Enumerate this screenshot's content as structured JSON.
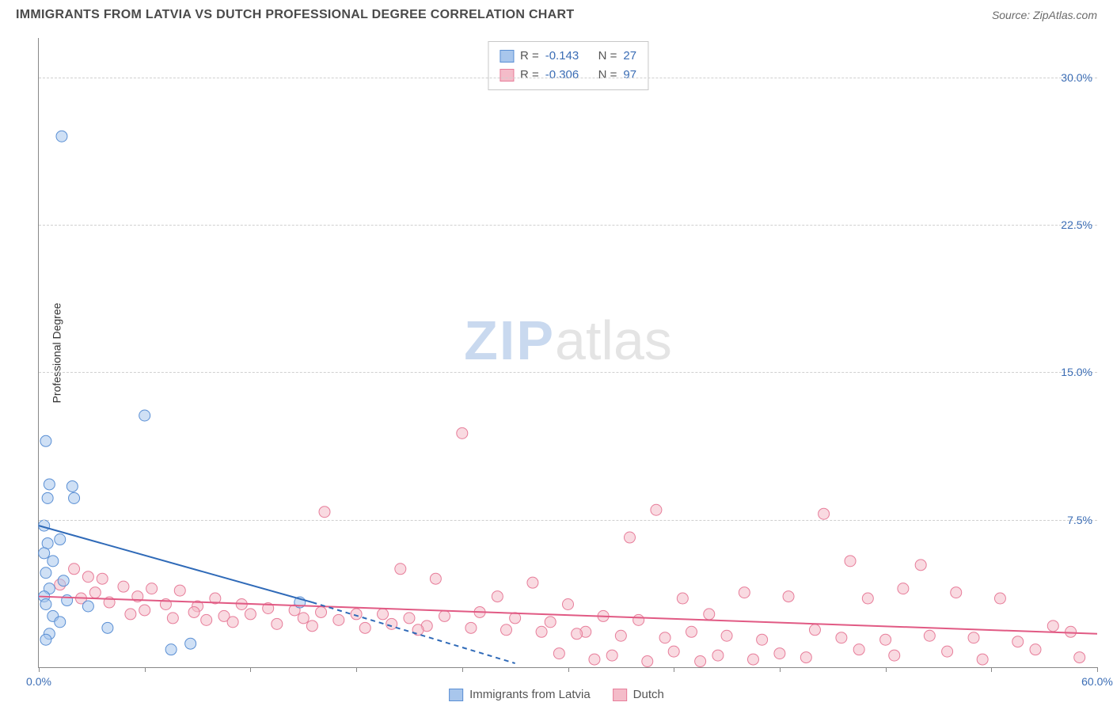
{
  "header": {
    "title": "IMMIGRANTS FROM LATVIA VS DUTCH PROFESSIONAL DEGREE CORRELATION CHART",
    "source": "Source: ZipAtlas.com"
  },
  "watermark": {
    "zip": "ZIP",
    "atlas": "atlas"
  },
  "chart": {
    "type": "scatter",
    "ylabel": "Professional Degree",
    "xlim": [
      0,
      60
    ],
    "ylim": [
      0,
      32
    ],
    "ytick_values": [
      7.5,
      15.0,
      22.5,
      30.0
    ],
    "ytick_labels": [
      "7.5%",
      "15.0%",
      "22.5%",
      "30.0%"
    ],
    "xtick_values": [
      0,
      6,
      12,
      18,
      24,
      30,
      36,
      42,
      48,
      54,
      60
    ],
    "x_axis_labels": {
      "left": "0.0%",
      "right": "60.0%"
    },
    "background_color": "#ffffff",
    "grid_color": "#d0d0d0",
    "marker_radius": 7,
    "marker_opacity": 0.55,
    "series": {
      "latvia": {
        "label": "Immigrants from Latvia",
        "fill": "#a8c6ec",
        "stroke": "#5a8fd4",
        "line_color": "#2f6ab8",
        "R_label": "R = ",
        "R": "-0.143",
        "N_label": "N = ",
        "N": "27",
        "trend": {
          "x1": 0,
          "y1": 7.2,
          "x2": 15.5,
          "y2": 3.3,
          "x2_dash": 27,
          "y2_dash": 0.2
        },
        "points": [
          [
            1.3,
            27.0
          ],
          [
            6.0,
            12.8
          ],
          [
            0.4,
            11.5
          ],
          [
            0.6,
            9.3
          ],
          [
            1.9,
            9.2
          ],
          [
            0.5,
            8.6
          ],
          [
            2.0,
            8.6
          ],
          [
            0.3,
            7.2
          ],
          [
            1.2,
            6.5
          ],
          [
            0.5,
            6.3
          ],
          [
            0.3,
            5.8
          ],
          [
            0.8,
            5.4
          ],
          [
            0.4,
            4.8
          ],
          [
            1.4,
            4.4
          ],
          [
            0.6,
            4.0
          ],
          [
            0.3,
            3.6
          ],
          [
            1.6,
            3.4
          ],
          [
            0.4,
            3.2
          ],
          [
            2.8,
            3.1
          ],
          [
            14.8,
            3.3
          ],
          [
            0.8,
            2.6
          ],
          [
            1.2,
            2.3
          ],
          [
            3.9,
            2.0
          ],
          [
            0.6,
            1.7
          ],
          [
            0.4,
            1.4
          ],
          [
            8.6,
            1.2
          ],
          [
            7.5,
            0.9
          ]
        ]
      },
      "dutch": {
        "label": "Dutch",
        "fill": "#f4bcc9",
        "stroke": "#e77d9a",
        "line_color": "#e15a84",
        "R_label": "R = ",
        "R": "-0.306",
        "N_label": "N = ",
        "N": "97",
        "trend": {
          "x1": 0,
          "y1": 3.6,
          "x2": 60,
          "y2": 1.7
        },
        "points": [
          [
            24.0,
            11.9
          ],
          [
            16.2,
            7.9
          ],
          [
            35.0,
            8.0
          ],
          [
            44.5,
            7.8
          ],
          [
            33.5,
            6.6
          ],
          [
            46.0,
            5.4
          ],
          [
            50.0,
            5.2
          ],
          [
            2.0,
            5.0
          ],
          [
            2.8,
            4.6
          ],
          [
            3.6,
            4.5
          ],
          [
            1.2,
            4.2
          ],
          [
            4.8,
            4.1
          ],
          [
            6.4,
            4.0
          ],
          [
            20.5,
            5.0
          ],
          [
            8.0,
            3.9
          ],
          [
            3.2,
            3.8
          ],
          [
            5.6,
            3.6
          ],
          [
            2.4,
            3.5
          ],
          [
            10.0,
            3.5
          ],
          [
            22.5,
            4.5
          ],
          [
            4.0,
            3.3
          ],
          [
            7.2,
            3.2
          ],
          [
            11.5,
            3.2
          ],
          [
            9.0,
            3.1
          ],
          [
            13.0,
            3.0
          ],
          [
            6.0,
            2.9
          ],
          [
            14.5,
            2.9
          ],
          [
            28.0,
            4.3
          ],
          [
            8.8,
            2.8
          ],
          [
            16.0,
            2.8
          ],
          [
            5.2,
            2.7
          ],
          [
            12.0,
            2.7
          ],
          [
            18.0,
            2.7
          ],
          [
            26.0,
            3.6
          ],
          [
            10.5,
            2.6
          ],
          [
            19.5,
            2.7
          ],
          [
            7.6,
            2.5
          ],
          [
            15.0,
            2.5
          ],
          [
            21.0,
            2.5
          ],
          [
            30.0,
            3.2
          ],
          [
            9.5,
            2.4
          ],
          [
            17.0,
            2.4
          ],
          [
            23.0,
            2.6
          ],
          [
            11.0,
            2.3
          ],
          [
            25.0,
            2.8
          ],
          [
            13.5,
            2.2
          ],
          [
            20.0,
            2.2
          ],
          [
            27.0,
            2.5
          ],
          [
            36.5,
            3.5
          ],
          [
            15.5,
            2.1
          ],
          [
            22.0,
            2.1
          ],
          [
            29.0,
            2.3
          ],
          [
            32.0,
            2.6
          ],
          [
            18.5,
            2.0
          ],
          [
            24.5,
            2.0
          ],
          [
            34.0,
            2.4
          ],
          [
            38.0,
            2.7
          ],
          [
            21.5,
            1.9
          ],
          [
            26.5,
            1.9
          ],
          [
            40.0,
            3.8
          ],
          [
            28.5,
            1.8
          ],
          [
            31.0,
            1.8
          ],
          [
            42.5,
            3.6
          ],
          [
            47.0,
            3.5
          ],
          [
            30.5,
            1.7
          ],
          [
            33.0,
            1.6
          ],
          [
            37.0,
            1.8
          ],
          [
            49.0,
            4.0
          ],
          [
            52.0,
            3.8
          ],
          [
            35.5,
            1.5
          ],
          [
            39.0,
            1.6
          ],
          [
            44.0,
            1.9
          ],
          [
            54.5,
            3.5
          ],
          [
            57.5,
            2.1
          ],
          [
            41.0,
            1.4
          ],
          [
            45.5,
            1.5
          ],
          [
            48.0,
            1.4
          ],
          [
            29.5,
            0.7
          ],
          [
            32.5,
            0.6
          ],
          [
            50.5,
            1.6
          ],
          [
            53.0,
            1.5
          ],
          [
            36.0,
            0.8
          ],
          [
            38.5,
            0.6
          ],
          [
            55.5,
            1.3
          ],
          [
            58.5,
            1.8
          ],
          [
            42.0,
            0.7
          ],
          [
            46.5,
            0.9
          ],
          [
            51.5,
            0.8
          ],
          [
            40.5,
            0.4
          ],
          [
            56.5,
            0.9
          ],
          [
            31.5,
            0.4
          ],
          [
            34.5,
            0.3
          ],
          [
            59.0,
            0.5
          ],
          [
            43.5,
            0.5
          ],
          [
            48.5,
            0.6
          ],
          [
            37.5,
            0.3
          ],
          [
            53.5,
            0.4
          ]
        ]
      }
    }
  },
  "legend": {
    "items": [
      {
        "key": "latvia",
        "label": "Immigrants from Latvia"
      },
      {
        "key": "dutch",
        "label": "Dutch"
      }
    ]
  }
}
